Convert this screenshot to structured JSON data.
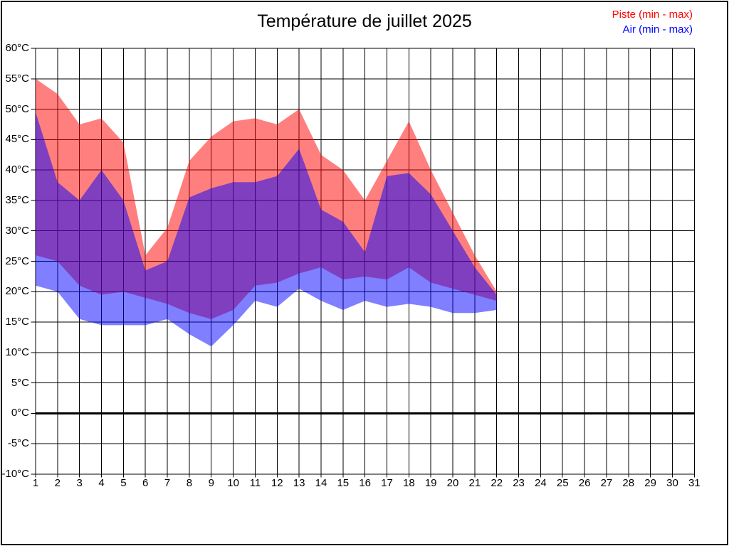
{
  "page": {
    "title": "Température de juillet 2025"
  },
  "legend": [
    {
      "label": "Piste (min - max)",
      "color": "#FF0000"
    },
    {
      "label": "Air (min - max)",
      "color": "#0000FF"
    }
  ],
  "chart_data": {
    "type": "area",
    "title": "Température de juillet 2025",
    "subtitle": "",
    "xlabel": "",
    "ylabel": "",
    "grid": true,
    "legend_position": "top-right",
    "x_axis": {
      "min": 1,
      "max": 31,
      "labels": [
        "1",
        "2",
        "3",
        "4",
        "5",
        "6",
        "7",
        "8",
        "9",
        "10",
        "11",
        "12",
        "13",
        "14",
        "15",
        "16",
        "17",
        "18",
        "19",
        "20",
        "21",
        "22",
        "23",
        "24",
        "25",
        "26",
        "27",
        "28",
        "29",
        "30",
        "31"
      ]
    },
    "y_axis": {
      "min": -10,
      "max": 60,
      "grid_step": 5,
      "zero_line_bold": true,
      "values": [
        60,
        55,
        50,
        45,
        40,
        35,
        30,
        25,
        20,
        15,
        10,
        5,
        0,
        -5,
        -10
      ],
      "labels": [
        "60°C",
        "55°C",
        "50°C",
        "45°C",
        "40°C",
        "35°C",
        "30°C",
        "25°C",
        "20°C",
        "15°C",
        "10°C",
        "5°C",
        "0°C",
        "-5°C",
        "-10°C"
      ]
    },
    "days_with_data": [
      1,
      2,
      3,
      4,
      5,
      6,
      7,
      8,
      9,
      10,
      11,
      12,
      13,
      14,
      15,
      16,
      17,
      18,
      19,
      20,
      21,
      22
    ],
    "series": [
      {
        "name": "Piste (min - max)",
        "color": "#FF0000",
        "fill_opacity": 0.5,
        "max": [
          55,
          52.5,
          47.5,
          48.5,
          44.5,
          26,
          30.5,
          41.5,
          45.5,
          48,
          48.5,
          47.5,
          50,
          42.5,
          40,
          35,
          41.5,
          48,
          40,
          33,
          26,
          20
        ],
        "min": [
          26,
          25,
          21,
          19.5,
          20,
          19,
          18,
          16.5,
          15.5,
          17,
          21,
          21.5,
          23,
          24,
          22,
          22.5,
          22,
          24,
          21.5,
          20.5,
          19.5,
          18.5
        ]
      },
      {
        "name": "Air (min - max)",
        "color": "#0000FF",
        "fill_opacity": 0.5,
        "max": [
          49.5,
          38,
          35,
          40,
          35,
          23.5,
          25,
          35.5,
          37,
          38,
          38,
          39,
          43.5,
          33.5,
          31.5,
          26.5,
          39,
          39.5,
          36,
          30,
          24,
          19.5
        ],
        "min": [
          21,
          20,
          15.5,
          14.5,
          14.5,
          14.5,
          15.5,
          13,
          11,
          14.5,
          18.5,
          17.5,
          20.5,
          18.5,
          17,
          18.5,
          17.5,
          18,
          17.5,
          16.5,
          16.5,
          17
        ]
      }
    ],
    "overlap_color": "#7F3FBF"
  }
}
